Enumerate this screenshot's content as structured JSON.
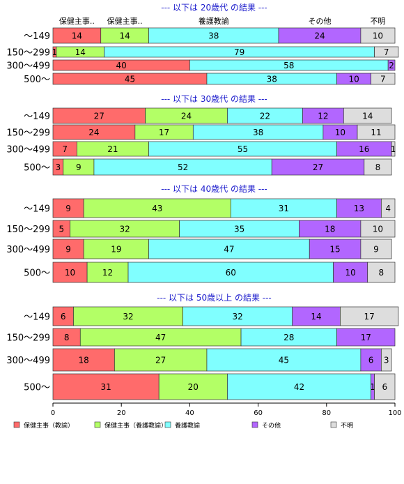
{
  "chart_data": {
    "type": "bar",
    "orientation": "horizontal",
    "stacked": true,
    "xlim": [
      0,
      100
    ],
    "x_ticks": [
      0,
      20,
      40,
      60,
      80,
      100
    ],
    "grid": false,
    "legend_position": "bottom",
    "series": [
      {
        "name": "保健主事（教諭）",
        "color": "#ff6b6b",
        "top_label": "保健主事.."
      },
      {
        "name": "保健主事（養護教諭）",
        "color": "#b3ff66",
        "top_label": "保健主事.."
      },
      {
        "name": "養護教諭",
        "color": "#80ffff",
        "top_label": "養護教諭"
      },
      {
        "name": "その他",
        "color": "#b266ff",
        "top_label": "その他"
      },
      {
        "name": "不明",
        "color": "#dddddd",
        "top_label": "不明"
      }
    ],
    "panels": [
      {
        "title": "--- 以下は 20歳代 の結果 ---",
        "show_top_labels": true,
        "rows": [
          {
            "label": "～149",
            "values": [
              14,
              14,
              38,
              24,
              10
            ],
            "weight": 1.0
          },
          {
            "label": "150～299",
            "values": [
              1,
              14,
              79,
              0,
              7
            ],
            "weight": 0.55
          },
          {
            "label": "300～499",
            "values": [
              40,
              0,
              58,
              2,
              0
            ],
            "weight": 0.55
          },
          {
            "label": "500～",
            "values": [
              45,
              0,
              38,
              10,
              7
            ],
            "weight": 0.55
          }
        ]
      },
      {
        "title": "--- 以下は 30歳代 の結果 ---",
        "show_top_labels": false,
        "rows": [
          {
            "label": "～149",
            "values": [
              27,
              24,
              22,
              12,
              14
            ],
            "weight": 1.0
          },
          {
            "label": "150～299",
            "values": [
              24,
              17,
              38,
              10,
              11
            ],
            "weight": 1.0
          },
          {
            "label": "300～499",
            "values": [
              7,
              21,
              55,
              16,
              1
            ],
            "weight": 1.0
          },
          {
            "label": "500～",
            "values": [
              3,
              9,
              52,
              27,
              8
            ],
            "weight": 1.0
          }
        ]
      },
      {
        "title": "--- 以下は 40歳代 の結果 ---",
        "show_top_labels": false,
        "rows": [
          {
            "label": "～149",
            "values": [
              9,
              43,
              31,
              13,
              4
            ],
            "weight": 1.0
          },
          {
            "label": "150～299",
            "values": [
              5,
              32,
              35,
              18,
              10
            ],
            "weight": 1.0
          },
          {
            "label": "300～499",
            "values": [
              9,
              19,
              47,
              15,
              9
            ],
            "weight": 1.2
          },
          {
            "label": "500～",
            "values": [
              10,
              12,
              60,
              10,
              8
            ],
            "weight": 1.3
          }
        ]
      },
      {
        "title": "--- 以下は 50歳以上 の結果 ---",
        "show_top_labels": false,
        "rows": [
          {
            "label": "～149",
            "values": [
              6,
              32,
              32,
              14,
              17
            ],
            "weight": 1.0
          },
          {
            "label": "150～299",
            "values": [
              8,
              47,
              28,
              17,
              0
            ],
            "weight": 1.0
          },
          {
            "label": "300～499",
            "values": [
              18,
              27,
              45,
              6,
              3
            ],
            "weight": 1.2
          },
          {
            "label": "500～",
            "values": [
              31,
              20,
              42,
              1,
              6
            ],
            "weight": 1.4
          }
        ]
      }
    ]
  }
}
